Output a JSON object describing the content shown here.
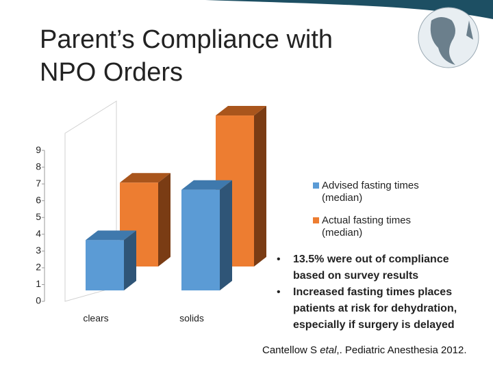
{
  "title": "Parent’s Compliance with NPO Orders",
  "chart_data": {
    "type": "bar3d",
    "categories": [
      "clears",
      "solids"
    ],
    "series": [
      {
        "name": "Advised fasting times (median)",
        "color": "#5b9bd5",
        "side": "#2f5577",
        "top": "#3f79ad",
        "values": [
          3,
          6
        ]
      },
      {
        "name": "Actual fasting times (median)",
        "color": "#ed7d31",
        "side": "#7a3c14",
        "top": "#a9551c",
        "values": [
          5,
          9
        ]
      }
    ],
    "ylim": [
      0,
      9
    ],
    "yticks": [
      0,
      1,
      2,
      3,
      4,
      5,
      6,
      7,
      8,
      9
    ],
    "grid": false
  },
  "bullets": [
    "13.5% were out of compliance based on survey results",
    "Increased fasting times places patients at risk for dehydration, especially if surgery is delayed"
  ],
  "citation": [
    "Cantellow S ",
    "etal",
    ",. Pediatric Anesthesia 2012."
  ]
}
